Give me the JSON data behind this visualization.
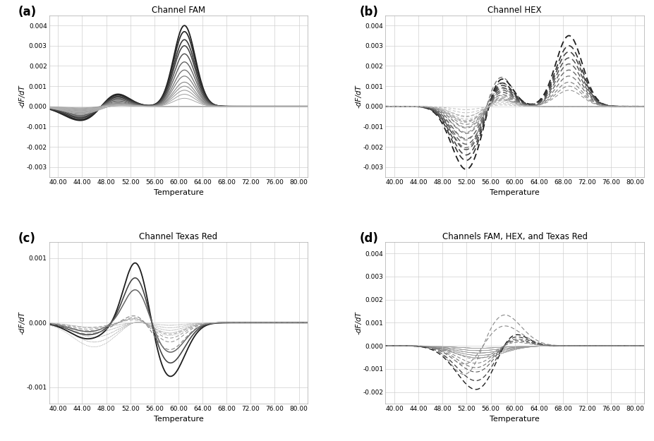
{
  "title_a": "Channel FAM",
  "title_b": "Channel HEX",
  "title_c": "Channel Texas Red",
  "title_d": "Channels FAM, HEX, and Texas Red",
  "xlabel": "Temperature",
  "ylabel": "-dF/dT",
  "label_a": "(a)",
  "label_b": "(b)",
  "label_c": "(c)",
  "label_d": "(d)",
  "x_ticks": [
    40.0,
    44.0,
    48.0,
    52.0,
    56.0,
    60.0,
    64.0,
    68.0,
    72.0,
    76.0,
    80.0
  ],
  "x_min": 38.5,
  "x_max": 81.5,
  "ylim_ab": [
    -0.0035,
    0.0045
  ],
  "ylim_c": [
    -0.00125,
    0.00125
  ],
  "ylim_d": [
    -0.0025,
    0.0045
  ],
  "yticks_ab": [
    -0.003,
    -0.002,
    -0.001,
    0.0,
    0.001,
    0.002,
    0.003,
    0.004
  ],
  "yticks_c": [
    -0.001,
    0.0,
    0.001
  ],
  "yticks_d": [
    -0.002,
    -0.001,
    0.0,
    0.001,
    0.002,
    0.003,
    0.004
  ],
  "background_color": "#ffffff",
  "grid_color": "#cccccc"
}
